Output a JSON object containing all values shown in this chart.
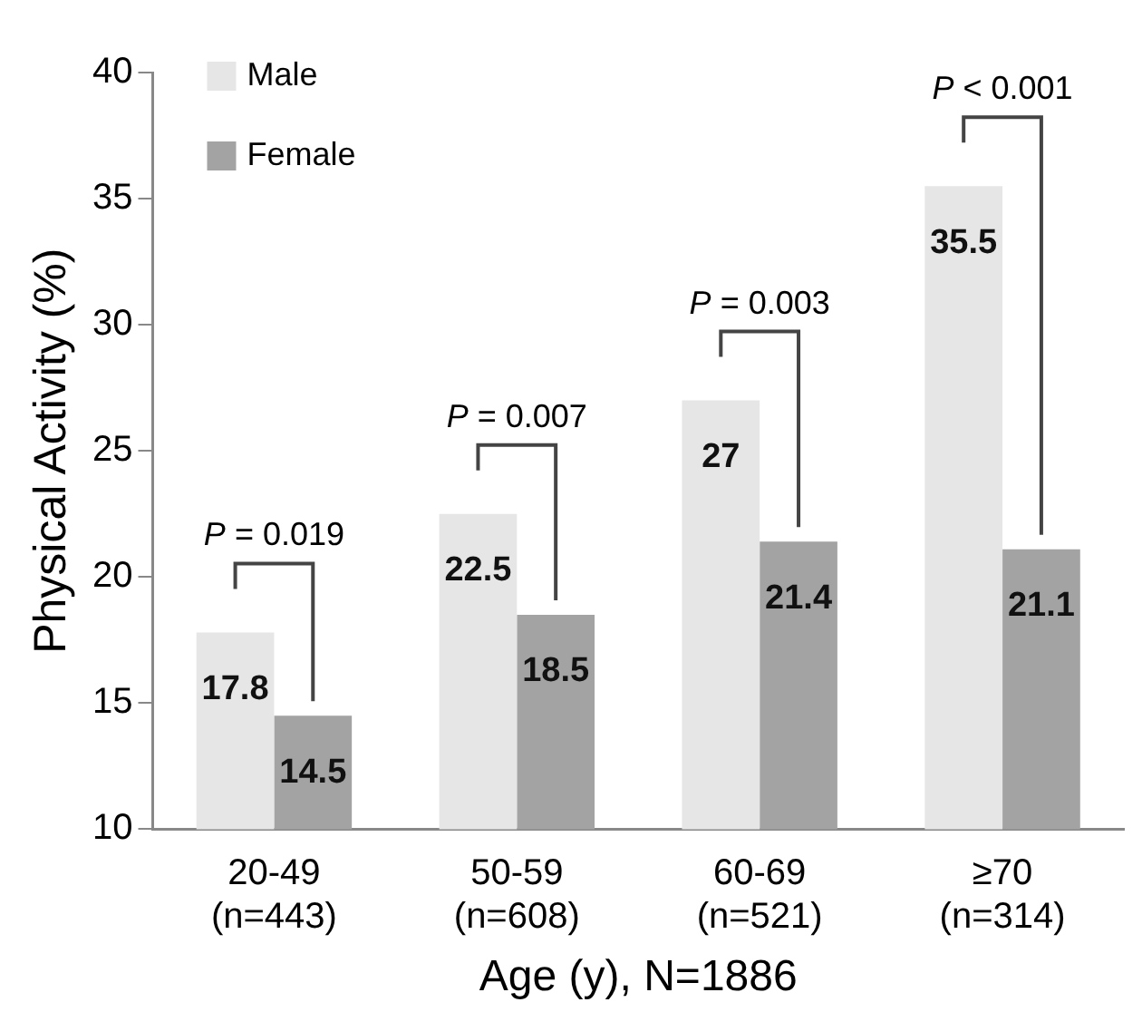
{
  "chart_data": {
    "type": "bar",
    "xlabel": "Age (y), N=1886",
    "ylabel": "Physical Activity (%)",
    "categories": [
      "20-49\n(n=443)",
      "50-59\n(n=608)",
      "60-69\n(n=521)",
      "≥70\n(n=314)"
    ],
    "series": [
      {
        "name": "Male",
        "color": "#e6e6e6",
        "values": [
          17.8,
          22.5,
          27,
          35.5
        ]
      },
      {
        "name": "Female",
        "color": "#a3a3a3",
        "values": [
          14.5,
          18.5,
          21.4,
          21.1
        ]
      }
    ],
    "ylim": [
      10,
      40
    ],
    "yticks": [
      10,
      15,
      20,
      25,
      30,
      35,
      40
    ],
    "grid": false,
    "legend": "top left",
    "data_labels": true,
    "annotations": [
      "P = 0.019",
      "P = 0.007",
      "P = 0.003",
      "P < 0.001"
    ]
  }
}
